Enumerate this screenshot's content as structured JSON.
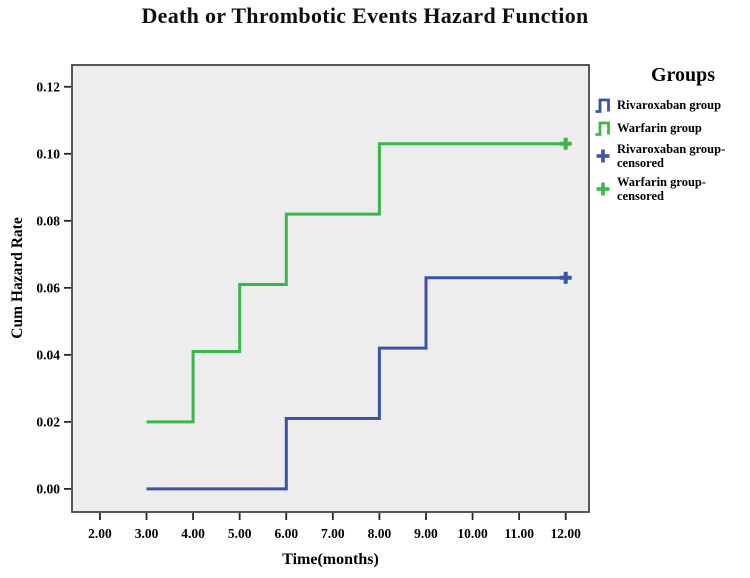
{
  "title": "Death or Thrombotic Events Hazard Function",
  "chart_data": {
    "type": "line",
    "style": "step",
    "title": "Death or Thrombotic Events Hazard Function",
    "xlabel": "Time(months)",
    "ylabel": "Cum Hazard Rate",
    "x_ticks": {
      "values": [
        2,
        3,
        4,
        5,
        6,
        7,
        8,
        9,
        10,
        11,
        12
      ],
      "labels": [
        "2.00",
        "3.00",
        "4.00",
        "5.00",
        "6.00",
        "7.00",
        "8.00",
        "9.00",
        "10.00",
        "11.00",
        "12.00"
      ]
    },
    "y_ticks": {
      "values": [
        0.0,
        0.02,
        0.04,
        0.06,
        0.08,
        0.1,
        0.12
      ],
      "labels": [
        "0.00",
        "0.02",
        "0.04",
        "0.06",
        "0.08",
        "0.10",
        "0.12"
      ]
    },
    "xlim": [
      1.4,
      12.5
    ],
    "ylim": [
      -0.0069,
      0.1265
    ],
    "grid": false,
    "plot_bg": "#EDEDEE",
    "frame_color": "#454545",
    "tick_color": "#262626",
    "series": [
      {
        "name": "Rivaroxaban group",
        "color": "#3A53A4",
        "points": [
          [
            3,
            0.0
          ],
          [
            6,
            0.0
          ],
          [
            6,
            0.021
          ],
          [
            8,
            0.021
          ],
          [
            8,
            0.042
          ],
          [
            9,
            0.042
          ],
          [
            9,
            0.063
          ],
          [
            12,
            0.063
          ]
        ],
        "censored_points": [
          [
            12,
            0.063
          ]
        ]
      },
      {
        "name": "Warfarin group",
        "color": "#3CB54A",
        "points": [
          [
            3,
            0.02
          ],
          [
            4,
            0.02
          ],
          [
            4,
            0.041
          ],
          [
            5,
            0.041
          ],
          [
            5,
            0.061
          ],
          [
            6,
            0.061
          ],
          [
            6,
            0.082
          ],
          [
            8,
            0.082
          ],
          [
            8,
            0.103
          ],
          [
            12,
            0.103
          ]
        ],
        "censored_points": [
          [
            12,
            0.103
          ]
        ]
      }
    ],
    "legend": {
      "title": "Groups",
      "position": "right",
      "items": [
        {
          "label": "Rivaroxaban group",
          "marker": "step",
          "color": "#3A53A4"
        },
        {
          "label": "Warfarin group",
          "marker": "step",
          "color": "#3CB54A"
        },
        {
          "label": "Rivaroxaban group-\ncensored",
          "marker": "plus",
          "color": "#3A53A4"
        },
        {
          "label": "Warfarin group-\ncensored",
          "marker": "plus",
          "color": "#3CB54A"
        }
      ]
    }
  }
}
